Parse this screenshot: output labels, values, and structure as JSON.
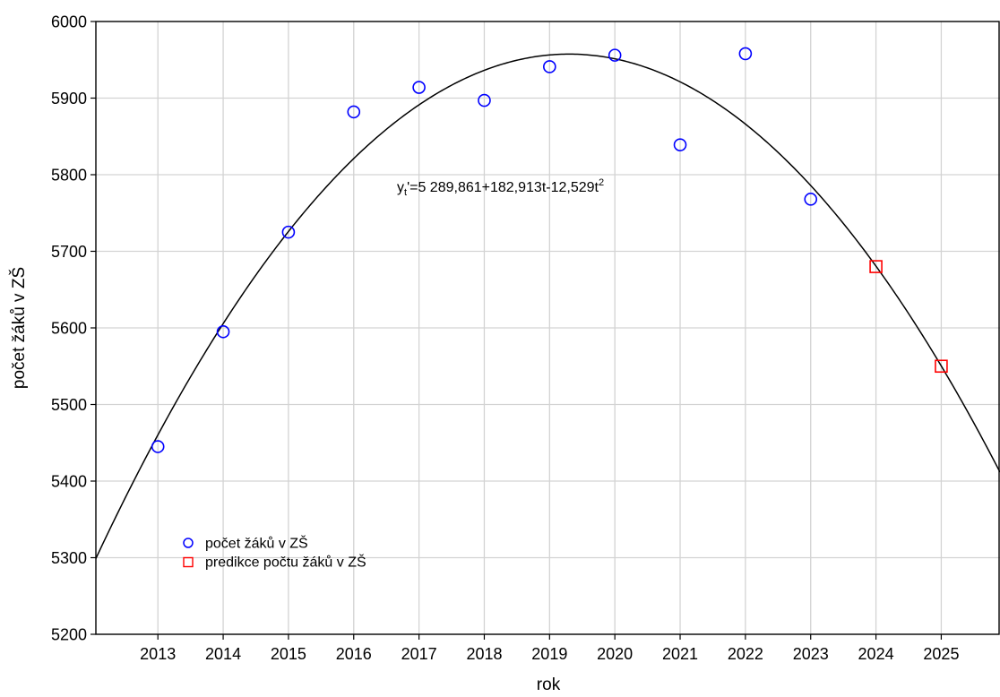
{
  "chart_data": {
    "type": "scatter",
    "xlabel": "rok",
    "ylabel": "počet žáků v ZŠ",
    "xlim": [
      2012.05,
      2025.9
    ],
    "ylim": [
      5200,
      6000
    ],
    "x_ticks": [
      2013,
      2014,
      2015,
      2016,
      2017,
      2018,
      2019,
      2020,
      2021,
      2022,
      2023,
      2024,
      2025
    ],
    "y_ticks": [
      5200,
      5300,
      5400,
      5500,
      5600,
      5700,
      5800,
      5900,
      6000
    ],
    "grid": true,
    "legend_position": "bottom-left",
    "series": [
      {
        "name": "počet žáků v ZŠ",
        "marker": "circle",
        "color": "#0000ff",
        "x": [
          2013,
          2014,
          2015,
          2016,
          2017,
          2018,
          2019,
          2020,
          2021,
          2022,
          2023
        ],
        "y": [
          5445,
          5595,
          5725,
          5882,
          5914,
          5897,
          5941,
          5956,
          5839,
          5958,
          5768
        ]
      },
      {
        "name": "predikce počtu žáků v ZŠ",
        "marker": "square",
        "color": "#ff0000",
        "x": [
          2024,
          2025
        ],
        "y": [
          5680,
          5550
        ]
      }
    ],
    "trend": {
      "type": "quadratic",
      "t_origin_year": 2012,
      "coefficients": [
        5289.861,
        182.913,
        -12.529
      ],
      "color": "#000000",
      "equation": {
        "prefix": "y",
        "subscript": "t",
        "body": "'=5 289,861+182,913t-12,529t",
        "superscript": "2"
      }
    }
  }
}
